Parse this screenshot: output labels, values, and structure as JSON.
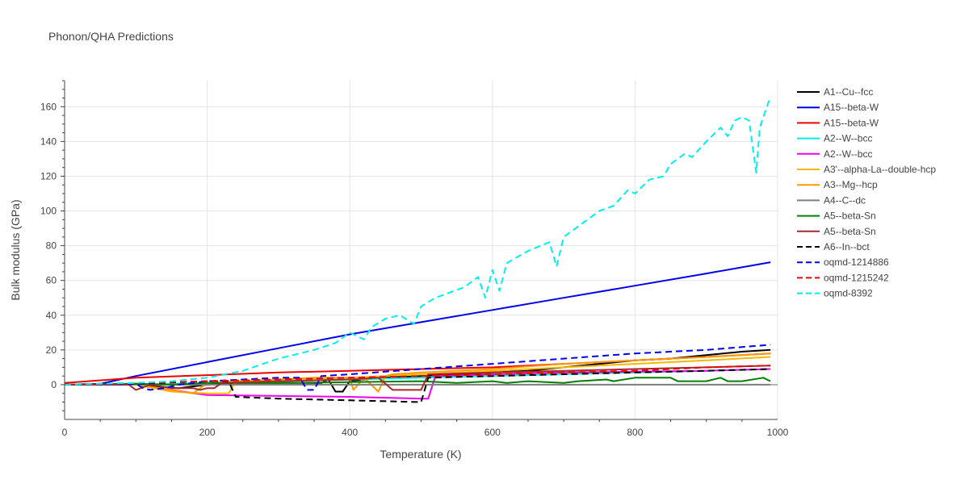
{
  "chart_data": {
    "type": "line",
    "title": "Phonon/QHA Predictions",
    "xlabel": "Temperature (K)",
    "ylabel": "Bulk modulus (GPa)",
    "xlim": [
      0,
      1000
    ],
    "ylim": [
      -20,
      175
    ],
    "xticks": [
      0,
      200,
      400,
      600,
      800,
      1000
    ],
    "yticks": [
      0,
      20,
      40,
      60,
      80,
      100,
      120,
      140,
      160
    ],
    "grid": true,
    "legend_position": "right",
    "series": [
      {
        "name": "A1--Cu--fcc",
        "color": "#000000",
        "dash": "solid",
        "x": [
          0,
          100,
          130,
          160,
          200,
          240,
          300,
          360,
          370,
          380,
          390,
          395,
          400,
          420,
          450,
          500,
          550,
          600,
          650,
          700,
          750,
          800,
          850,
          900,
          950,
          990
        ],
        "y": [
          0,
          0.5,
          -1,
          -2,
          0,
          1,
          1,
          1,
          3,
          -4,
          -4,
          -1,
          2,
          3,
          4,
          5,
          6,
          7,
          8,
          10,
          12,
          14,
          15,
          17,
          19,
          20
        ]
      },
      {
        "name": "A15--beta-W",
        "color": "#0000ee",
        "dash": "solid",
        "x": [
          0,
          50,
          100,
          200,
          300,
          400,
          500,
          600,
          700,
          800,
          900,
          990
        ],
        "y": [
          0,
          0.5,
          5,
          13,
          21,
          29,
          36,
          43,
          50,
          57,
          64,
          70.5
        ]
      },
      {
        "name": "A15--beta-W",
        "color": "#ee0000",
        "dash": "solid",
        "x": [
          0,
          100,
          200,
          300,
          400,
          500,
          600,
          700,
          800,
          900,
          990
        ],
        "y": [
          1,
          4,
          5.5,
          7,
          8,
          9,
          10,
          12,
          14,
          16,
          18
        ]
      },
      {
        "name": "A2--W--bcc",
        "color": "#00eeee",
        "dash": "solid",
        "x": [
          0,
          100,
          200,
          300,
          400,
          500,
          600,
          700,
          800,
          900,
          990
        ],
        "y": [
          0,
          0,
          1,
          2,
          3,
          4,
          5,
          6,
          7,
          8,
          9
        ]
      },
      {
        "name": "A2--W--bcc",
        "color": "#ee00ee",
        "dash": "solid",
        "x": [
          0,
          100,
          150,
          200,
          300,
          400,
          500,
          510,
          520,
          600,
          700,
          800,
          900,
          990
        ],
        "y": [
          0,
          0,
          -3,
          -6,
          -6.5,
          -7,
          -8,
          -8,
          5,
          6,
          7,
          7.5,
          8,
          9
        ]
      },
      {
        "name": "A3'--alpha-La--double-hcp",
        "color": "#f5b800",
        "dash": "solid",
        "x": [
          0,
          100,
          150,
          200,
          230,
          240,
          300,
          400,
          500,
          600,
          700,
          800,
          900,
          990
        ],
        "y": [
          0,
          0,
          -4,
          -5,
          -5,
          2,
          3,
          4,
          6,
          8,
          10,
          12,
          14,
          16
        ]
      },
      {
        "name": "A3--Mg--hcp",
        "color": "#ff9900",
        "dash": "solid",
        "x": [
          0,
          100,
          180,
          200,
          250,
          300,
          350,
          400,
          405,
          420,
          440,
          450,
          460,
          500,
          600,
          700,
          800,
          900,
          990
        ],
        "y": [
          0,
          0,
          -5,
          1,
          2,
          3,
          4,
          4,
          -3,
          4,
          -4,
          5,
          6,
          7,
          9,
          12,
          14,
          16,
          18
        ]
      },
      {
        "name": "A4--C--dc",
        "color": "#7f7f7f",
        "dash": "solid",
        "x": [
          0,
          990
        ],
        "y": [
          0,
          0
        ]
      },
      {
        "name": "A5--beta-Sn",
        "color": "#008000",
        "dash": "solid",
        "x": [
          0,
          100,
          150,
          200,
          300,
          400,
          500,
          550,
          600,
          620,
          650,
          700,
          720,
          760,
          770,
          800,
          850,
          860,
          900,
          920,
          930,
          950,
          980,
          990
        ],
        "y": [
          0,
          0.5,
          0,
          1,
          1,
          1.5,
          2,
          1,
          2,
          1,
          2,
          1,
          2,
          3,
          2,
          4,
          4,
          2,
          2,
          4,
          2,
          2,
          4,
          2
        ]
      },
      {
        "name": "A5--beta-Sn",
        "color": "#a52a2a",
        "dash": "solid",
        "x": [
          0,
          90,
          100,
          120,
          150,
          180,
          190,
          200,
          210,
          220,
          300,
          400,
          440,
          460,
          500,
          510,
          600,
          700,
          800,
          900,
          990
        ],
        "y": [
          0,
          0,
          -3,
          0,
          -2,
          -2,
          -3,
          -2,
          -2,
          1,
          2,
          3,
          4,
          -3,
          -3,
          6,
          7,
          8,
          9,
          10,
          11
        ]
      },
      {
        "name": "A6--In--bct",
        "color": "#000000",
        "dash": "dash",
        "x": [
          0,
          100,
          200,
          230,
          240,
          300,
          400,
          500,
          510,
          600,
          700,
          800,
          900,
          990
        ],
        "y": [
          0,
          0.5,
          2,
          2,
          -7,
          -8,
          -9,
          -10,
          4,
          5,
          6,
          7,
          8,
          9
        ]
      },
      {
        "name": "oqmd-1214886",
        "color": "#0000ee",
        "dash": "dash",
        "x": [
          0,
          100,
          110,
          120,
          140,
          160,
          200,
          300,
          330,
          340,
          350,
          360,
          400,
          500,
          600,
          700,
          800,
          900,
          990
        ],
        "y": [
          0,
          0.5,
          -2,
          -3,
          -2,
          0,
          2,
          4,
          4,
          -3,
          -3,
          5,
          6,
          9,
          12,
          15,
          18,
          20,
          23
        ]
      },
      {
        "name": "oqmd-1215242",
        "color": "#ee0000",
        "dash": "dash",
        "x": [
          0,
          100,
          200,
          300,
          400,
          500,
          600,
          700,
          800,
          900,
          990
        ],
        "y": [
          0,
          1,
          2,
          3,
          4,
          5,
          6,
          7,
          8,
          10,
          11
        ]
      },
      {
        "name": "oqmd-8392",
        "color": "#00eeee",
        "dash": "dash",
        "x": [
          0,
          100,
          150,
          200,
          250,
          300,
          350,
          380,
          400,
          420,
          430,
          450,
          470,
          490,
          500,
          520,
          560,
          580,
          590,
          600,
          610,
          620,
          650,
          680,
          690,
          700,
          750,
          770,
          790,
          800,
          820,
          840,
          850,
          870,
          880,
          900,
          920,
          930,
          940,
          950,
          960,
          970,
          975,
          990
        ],
        "y": [
          0,
          1,
          2,
          4,
          8,
          15,
          20,
          24,
          30,
          26,
          33,
          38,
          40,
          35,
          45,
          50,
          56,
          62,
          50,
          66,
          54,
          70,
          77,
          82,
          68,
          85,
          100,
          103,
          112,
          110,
          118,
          120,
          127,
          133,
          131,
          140,
          148,
          143,
          152,
          154,
          152,
          122,
          148,
          166
        ]
      }
    ]
  }
}
